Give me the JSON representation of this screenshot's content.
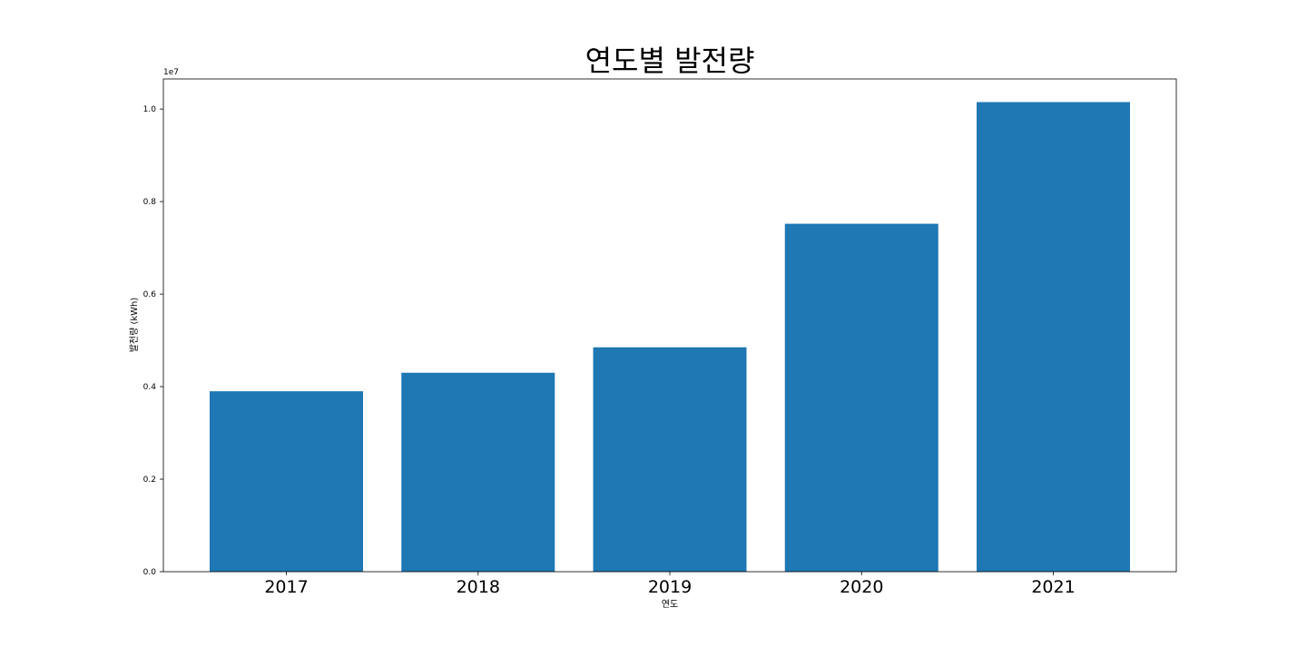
{
  "chart_data": {
    "type": "bar",
    "title": "연도별 발전량",
    "xlabel": "연도",
    "ylabel": "발전량 (kWh)",
    "offset_label": "1e7",
    "categories": [
      "2017",
      "2018",
      "2019",
      "2020",
      "2021"
    ],
    "values": [
      3900000,
      4300000,
      4850000,
      7520000,
      10150000
    ],
    "ylim": [
      0,
      10650000
    ],
    "yticks": [
      0,
      2000000,
      4000000,
      6000000,
      8000000,
      10000000
    ],
    "ytick_labels": [
      "0.0",
      "0.2",
      "0.4",
      "0.6",
      "0.8",
      "1.0"
    ],
    "bar_color": "#1f77b4",
    "grid": false
  }
}
